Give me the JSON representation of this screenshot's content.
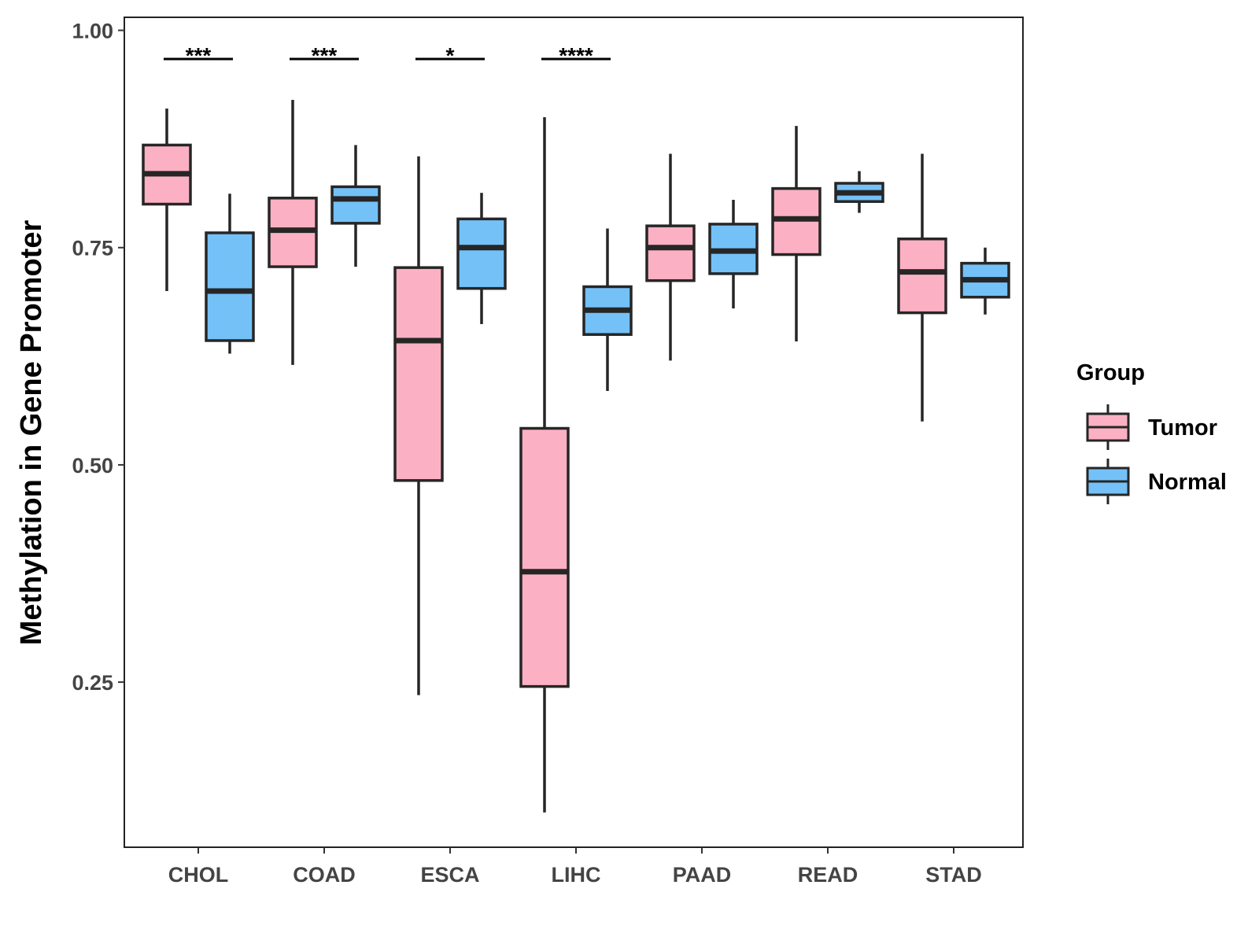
{
  "chart_data": {
    "type": "boxplot",
    "title": "",
    "xlabel": "",
    "ylabel": "Methylation in Gene Promoter",
    "ylim": [
      0.06,
      1.015
    ],
    "yticks": [
      "0.25",
      "0.50",
      "0.75",
      "1.00"
    ],
    "categories": [
      "CHOL",
      "COAD",
      "ESCA",
      "LIHC",
      "PAAD",
      "READ",
      "STAD"
    ],
    "legend": {
      "title": "Group",
      "placement": "right",
      "entries": [
        {
          "name": "Tumor",
          "color": "#FBB1C3"
        },
        {
          "name": "Normal",
          "color": "#74C1F8"
        }
      ]
    },
    "series": [
      {
        "name": "Tumor",
        "color": "#FBB1C3",
        "boxes": [
          {
            "min": 0.7,
            "q1": 0.8,
            "median": 0.835,
            "q3": 0.868,
            "max": 0.91
          },
          {
            "min": 0.615,
            "q1": 0.728,
            "median": 0.77,
            "q3": 0.807,
            "max": 0.92
          },
          {
            "min": 0.235,
            "q1": 0.482,
            "median": 0.643,
            "q3": 0.727,
            "max": 0.855
          },
          {
            "min": 0.1,
            "q1": 0.245,
            "median": 0.377,
            "q3": 0.542,
            "max": 0.9
          },
          {
            "min": 0.62,
            "q1": 0.712,
            "median": 0.75,
            "q3": 0.775,
            "max": 0.858
          },
          {
            "min": 0.642,
            "q1": 0.742,
            "median": 0.783,
            "q3": 0.818,
            "max": 0.89
          },
          {
            "min": 0.55,
            "q1": 0.675,
            "median": 0.722,
            "q3": 0.76,
            "max": 0.858
          }
        ]
      },
      {
        "name": "Normal",
        "color": "#74C1F8",
        "boxes": [
          {
            "min": 0.628,
            "q1": 0.643,
            "median": 0.7,
            "q3": 0.767,
            "max": 0.812
          },
          {
            "min": 0.728,
            "q1": 0.778,
            "median": 0.806,
            "q3": 0.82,
            "max": 0.868
          },
          {
            "min": 0.662,
            "q1": 0.703,
            "median": 0.75,
            "q3": 0.783,
            "max": 0.813
          },
          {
            "min": 0.585,
            "q1": 0.65,
            "median": 0.678,
            "q3": 0.705,
            "max": 0.772
          },
          {
            "min": 0.68,
            "q1": 0.72,
            "median": 0.746,
            "q3": 0.777,
            "max": 0.805
          },
          {
            "min": 0.79,
            "q1": 0.803,
            "median": 0.813,
            "q3": 0.824,
            "max": 0.838
          },
          {
            "min": 0.673,
            "q1": 0.693,
            "median": 0.713,
            "q3": 0.732,
            "max": 0.75
          }
        ]
      }
    ],
    "significance": [
      {
        "category": "CHOL",
        "label": "***"
      },
      {
        "category": "COAD",
        "label": "***"
      },
      {
        "category": "ESCA",
        "label": "*"
      },
      {
        "category": "LIHC",
        "label": "****"
      }
    ]
  }
}
